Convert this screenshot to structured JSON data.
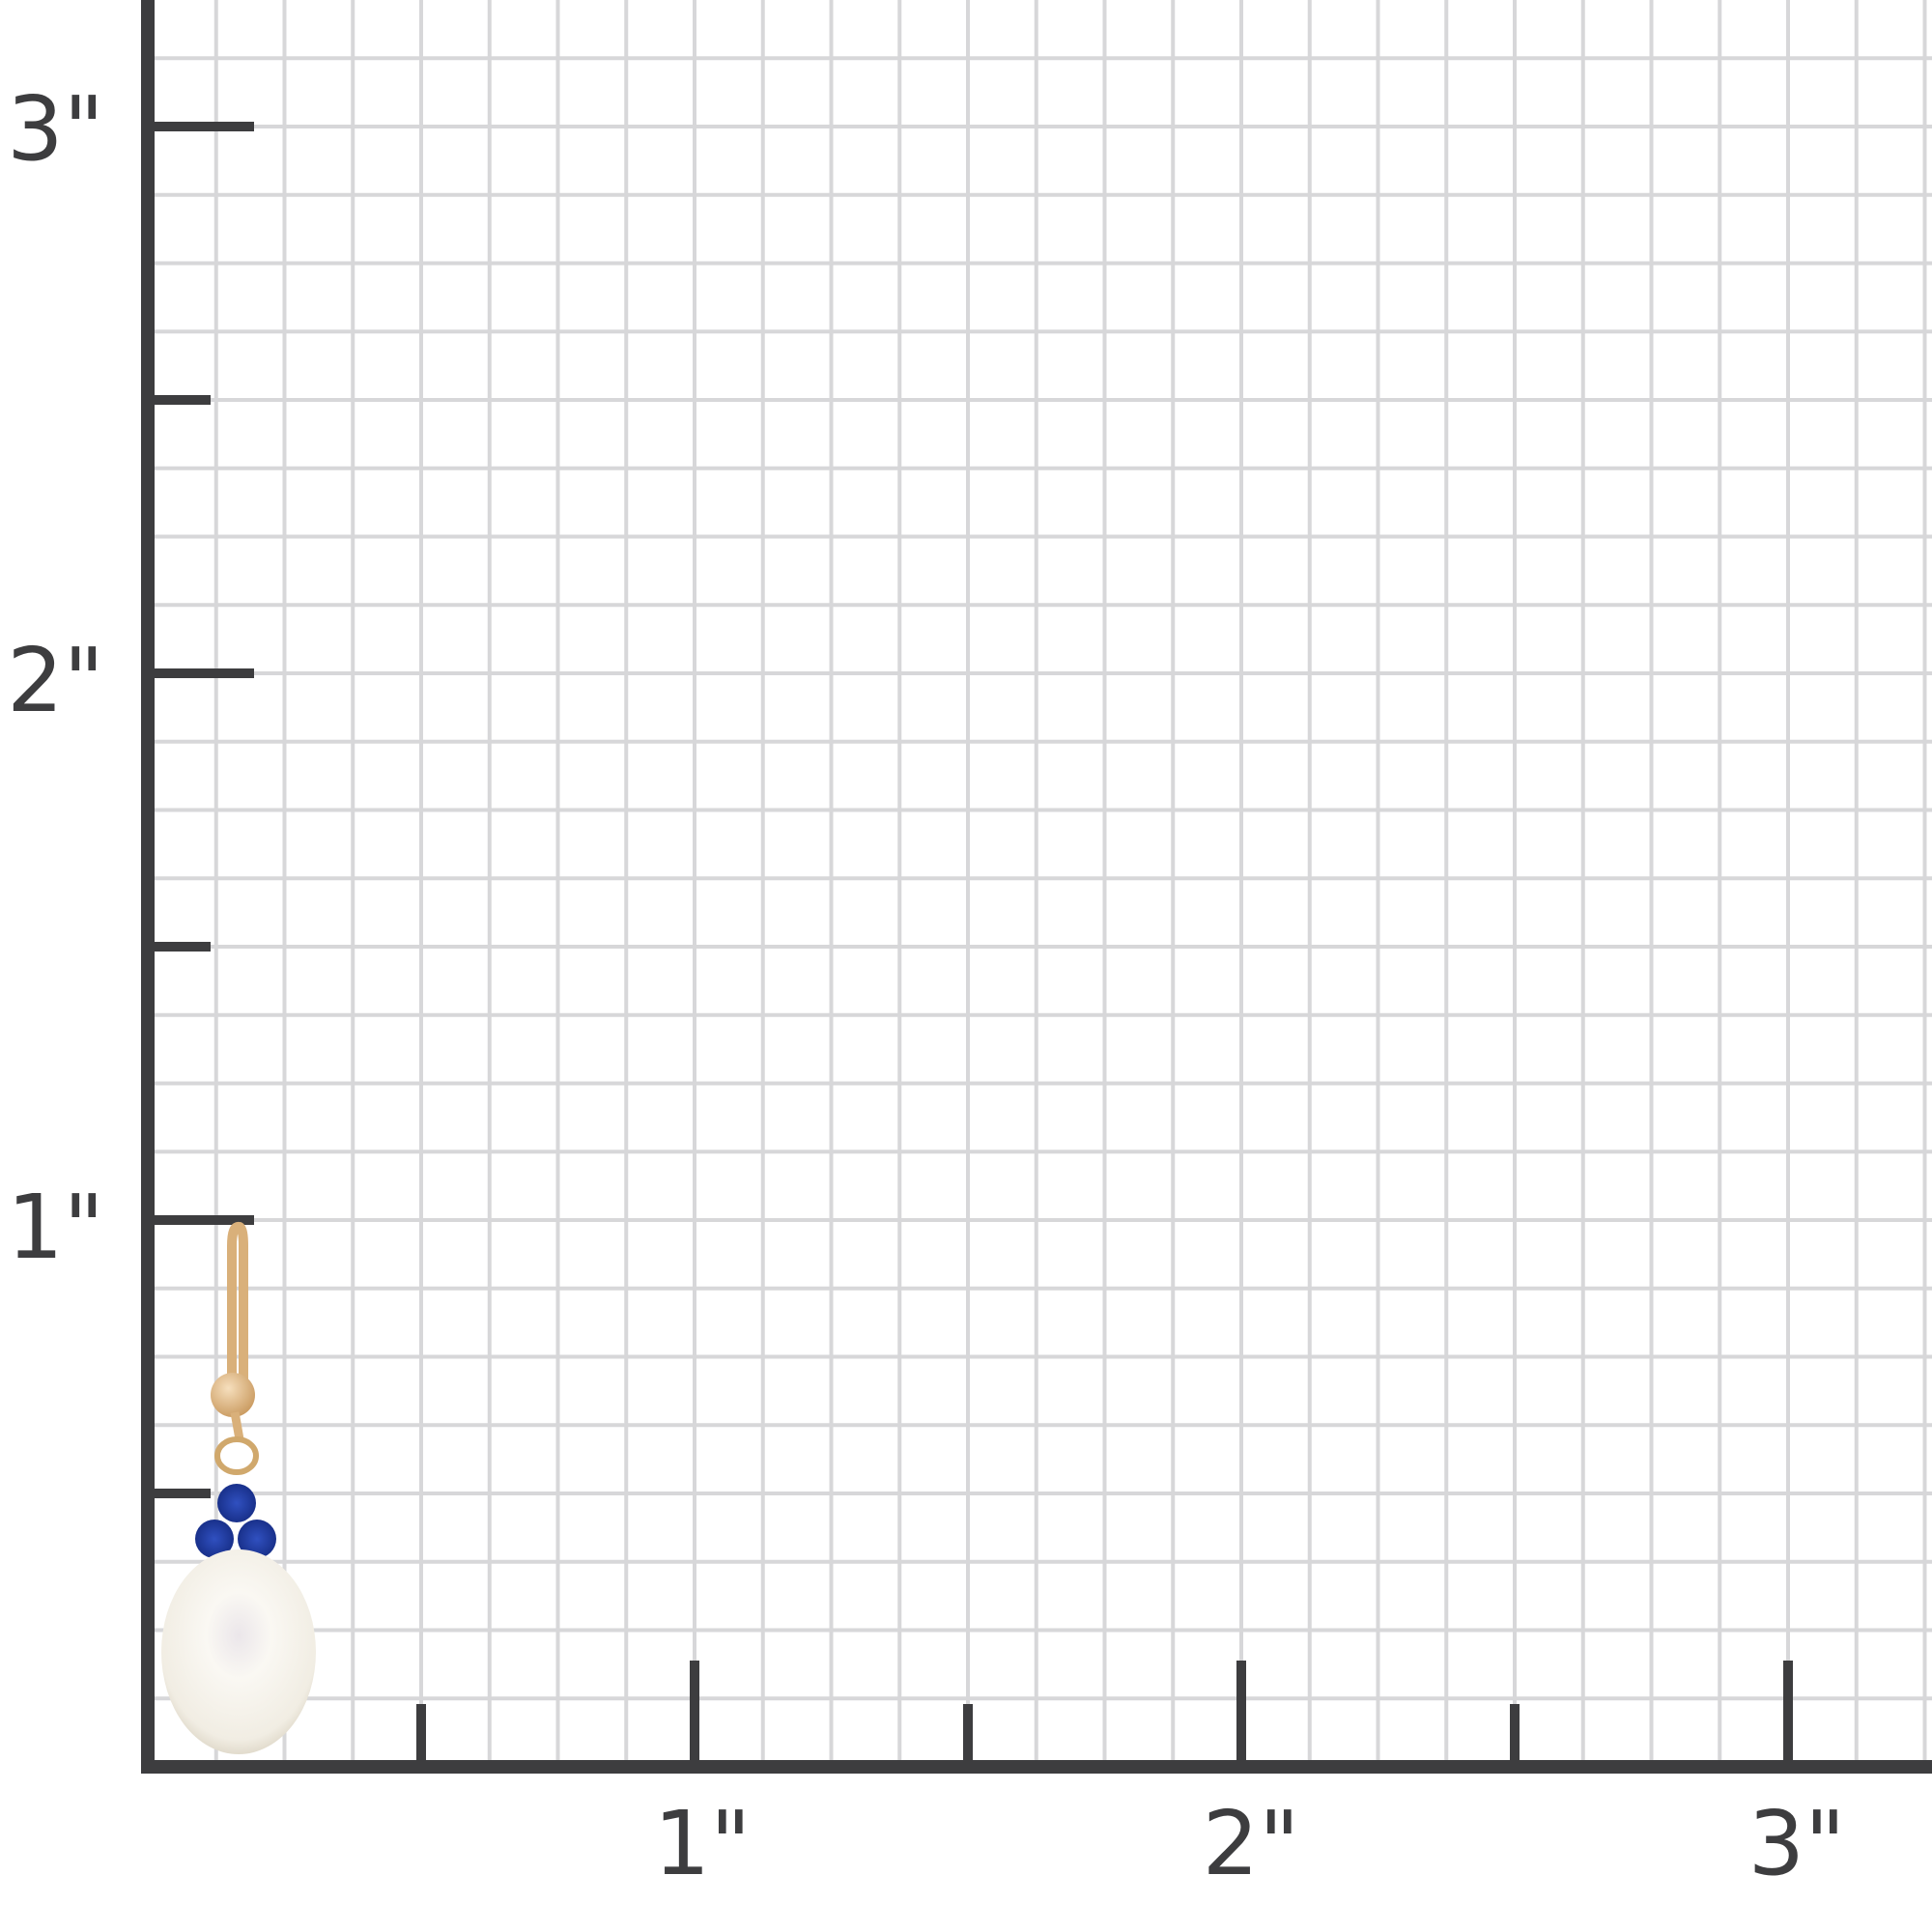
{
  "ruler": {
    "unit_mark": "\"",
    "y_labels": [
      "1\"",
      "2\"",
      "3\""
    ],
    "x_labels": [
      "1\"",
      "2\"",
      "3\""
    ],
    "y_values_in": [
      1,
      2,
      3
    ],
    "x_values_in": [
      1,
      2,
      3
    ],
    "grid_subdivisions_per_inch": 8,
    "colors": {
      "axis": "#3d3d3f",
      "grid": "#d7d7d9",
      "background": "#ffffff"
    }
  },
  "product": {
    "subject": "gold hook earring with three blue sapphires and white pearl drop",
    "colors": {
      "gold": "#d9b07a",
      "sapphire": "#1f3a9e",
      "pearl": "#f4f1ea"
    }
  }
}
